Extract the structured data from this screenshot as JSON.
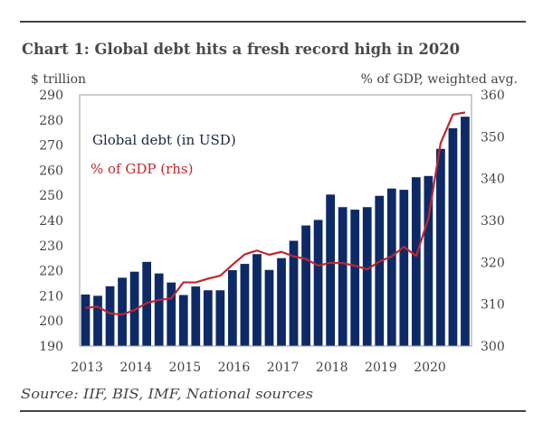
{
  "chart_data": {
    "type": "bar+line",
    "title": "Chart 1: Global debt hits a fresh record high in 2020",
    "ylabel_left": "$ trillion",
    "ylabel_right": "% of GDP, weighted avg.",
    "source": "Source: IIF, BIS, IMF, National sources",
    "ylim_left": [
      190,
      290
    ],
    "ylim_right": [
      300,
      360
    ],
    "yticks_left": [
      190,
      200,
      210,
      220,
      230,
      240,
      250,
      260,
      270,
      280,
      290
    ],
    "yticks_right": [
      300,
      310,
      320,
      330,
      340,
      350,
      360
    ],
    "xtick_labels": [
      "2013",
      "2014",
      "2015",
      "2016",
      "2017",
      "2018",
      "2019",
      "2020"
    ],
    "grid": false,
    "legend_placement": "top-left",
    "colors": {
      "bars": "#0d2a66",
      "line": "#c0272d"
    },
    "categories": [
      "2013Q1",
      "2013Q2",
      "2013Q3",
      "2013Q4",
      "2014Q1",
      "2014Q2",
      "2014Q3",
      "2014Q4",
      "2015Q1",
      "2015Q2",
      "2015Q3",
      "2015Q4",
      "2016Q1",
      "2016Q2",
      "2016Q3",
      "2016Q4",
      "2017Q1",
      "2017Q2",
      "2017Q3",
      "2017Q4",
      "2018Q1",
      "2018Q2",
      "2018Q3",
      "2018Q4",
      "2019Q1",
      "2019Q2",
      "2019Q3",
      "2019Q4",
      "2020Q1",
      "2020Q2",
      "2020Q3",
      "2020Q4"
    ],
    "series": [
      {
        "name": "Global debt (in USD)",
        "type": "bar",
        "axis": "left",
        "values": [
          210.5,
          210,
          213.8,
          217.2,
          219.6,
          223.5,
          218.9,
          215.3,
          210.3,
          213.7,
          212.2,
          212.2,
          220.2,
          222.7,
          226.6,
          220.3,
          225,
          231.9,
          238,
          240.2,
          250.3,
          245.3,
          244.3,
          245.3,
          249.8,
          252.7,
          252.2,
          257.2,
          257.7,
          268.5,
          276.7,
          281.3
        ]
      },
      {
        "name": "% of GDP (rhs)",
        "type": "line",
        "axis": "right",
        "values": [
          309.1,
          309.4,
          307.8,
          307.5,
          308.6,
          310.3,
          311,
          311.4,
          315.2,
          315.2,
          316.1,
          316.8,
          319.4,
          321.9,
          322.8,
          321.8,
          322.5,
          321.4,
          320.8,
          319.2,
          319.9,
          319.8,
          319.2,
          318.3,
          320.2,
          321.4,
          323.7,
          321.5,
          330.5,
          348.5,
          355.3,
          355.8
        ]
      }
    ]
  }
}
